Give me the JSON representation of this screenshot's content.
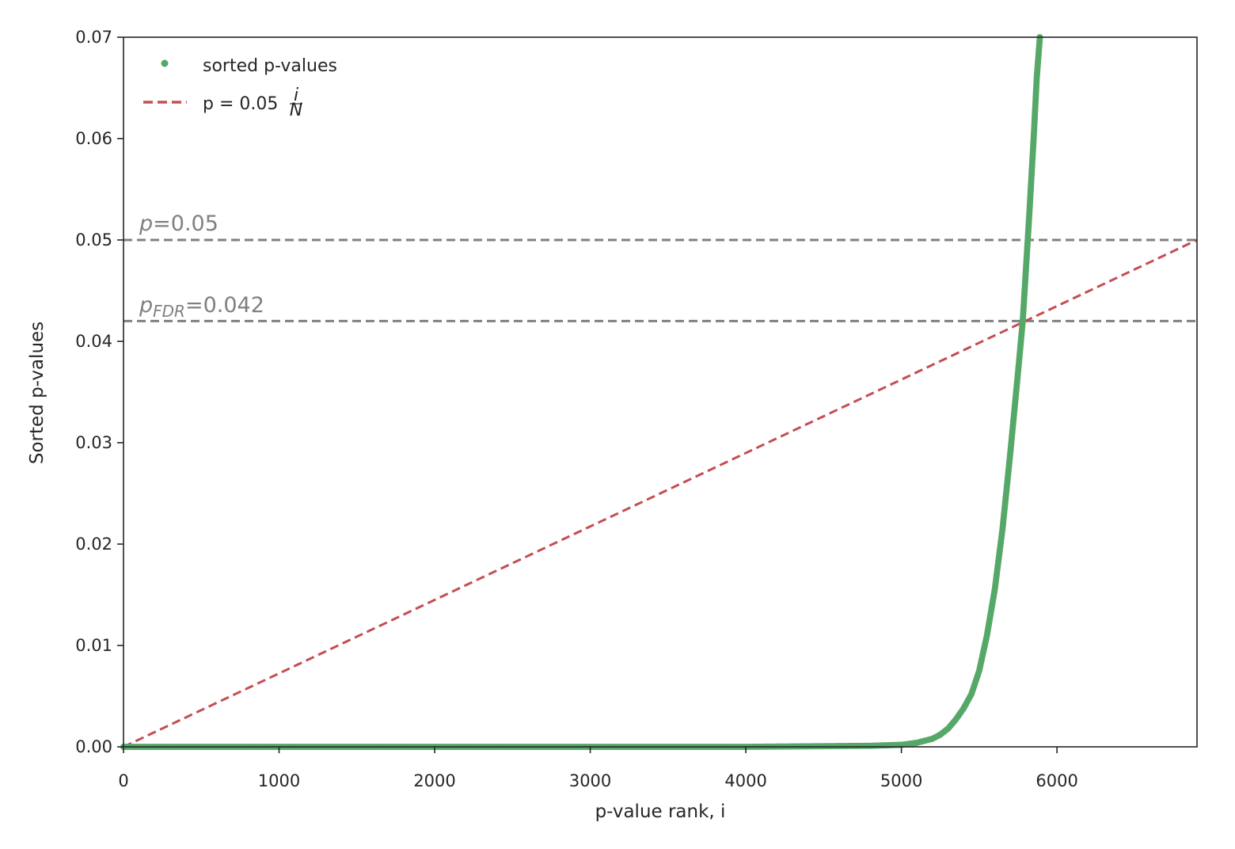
{
  "chart_data": {
    "type": "scatter",
    "title": "",
    "xlabel": "p-value rank, i",
    "ylabel": "Sorted p-values",
    "xlim": [
      0,
      6900
    ],
    "ylim": [
      0,
      0.07
    ],
    "xticks": [
      0,
      1000,
      2000,
      3000,
      4000,
      5000,
      6000
    ],
    "xtick_labels": [
      "0",
      "1000",
      "2000",
      "3000",
      "4000",
      "5000",
      "6000"
    ],
    "yticks": [
      0,
      0.01,
      0.02,
      0.03,
      0.04,
      0.05,
      0.06,
      0.07
    ],
    "ytick_labels": [
      "0.00",
      "0.01",
      "0.02",
      "0.03",
      "0.04",
      "0.05",
      "0.06",
      "0.07"
    ],
    "grid": false,
    "legend_position": "top-left",
    "series": [
      {
        "name": "sorted p-values",
        "kind": "points",
        "color": "#55a868",
        "x": [
          0,
          1000,
          2000,
          3000,
          4000,
          4800,
          5000,
          5100,
          5200,
          5250,
          5300,
          5350,
          5400,
          5450,
          5500,
          5550,
          5600,
          5650,
          5700,
          5750,
          5780,
          5800,
          5820,
          5850,
          5870,
          5890
        ],
        "y": [
          0,
          0,
          0,
          0,
          0,
          0.0001,
          0.0002,
          0.0004,
          0.0008,
          0.0012,
          0.0018,
          0.0027,
          0.0038,
          0.0052,
          0.0075,
          0.011,
          0.0155,
          0.0215,
          0.029,
          0.037,
          0.042,
          0.047,
          0.052,
          0.06,
          0.066,
          0.07
        ]
      },
      {
        "name": "p = 0.05 i/N",
        "kind": "dashed-line",
        "color": "#c44e52",
        "x": [
          0,
          6900
        ],
        "y": [
          0,
          0.05
        ]
      }
    ],
    "hlines": [
      {
        "y": 0.05,
        "color": "#808080"
      },
      {
        "y": 0.042,
        "color": "#808080"
      }
    ],
    "annotations": {
      "p05": {
        "sym": "p",
        "text": "=0.05",
        "x": 100,
        "y": 0.05
      },
      "pfdr": {
        "sym": "p",
        "sub": "FDR",
        "text": "=0.042",
        "x": 100,
        "y": 0.042
      }
    },
    "legend": {
      "scatter_label": "sorted p-values",
      "line_label_main": "p = 0.05",
      "line_label_frac_num": "i",
      "line_label_frac_den": "N"
    }
  }
}
